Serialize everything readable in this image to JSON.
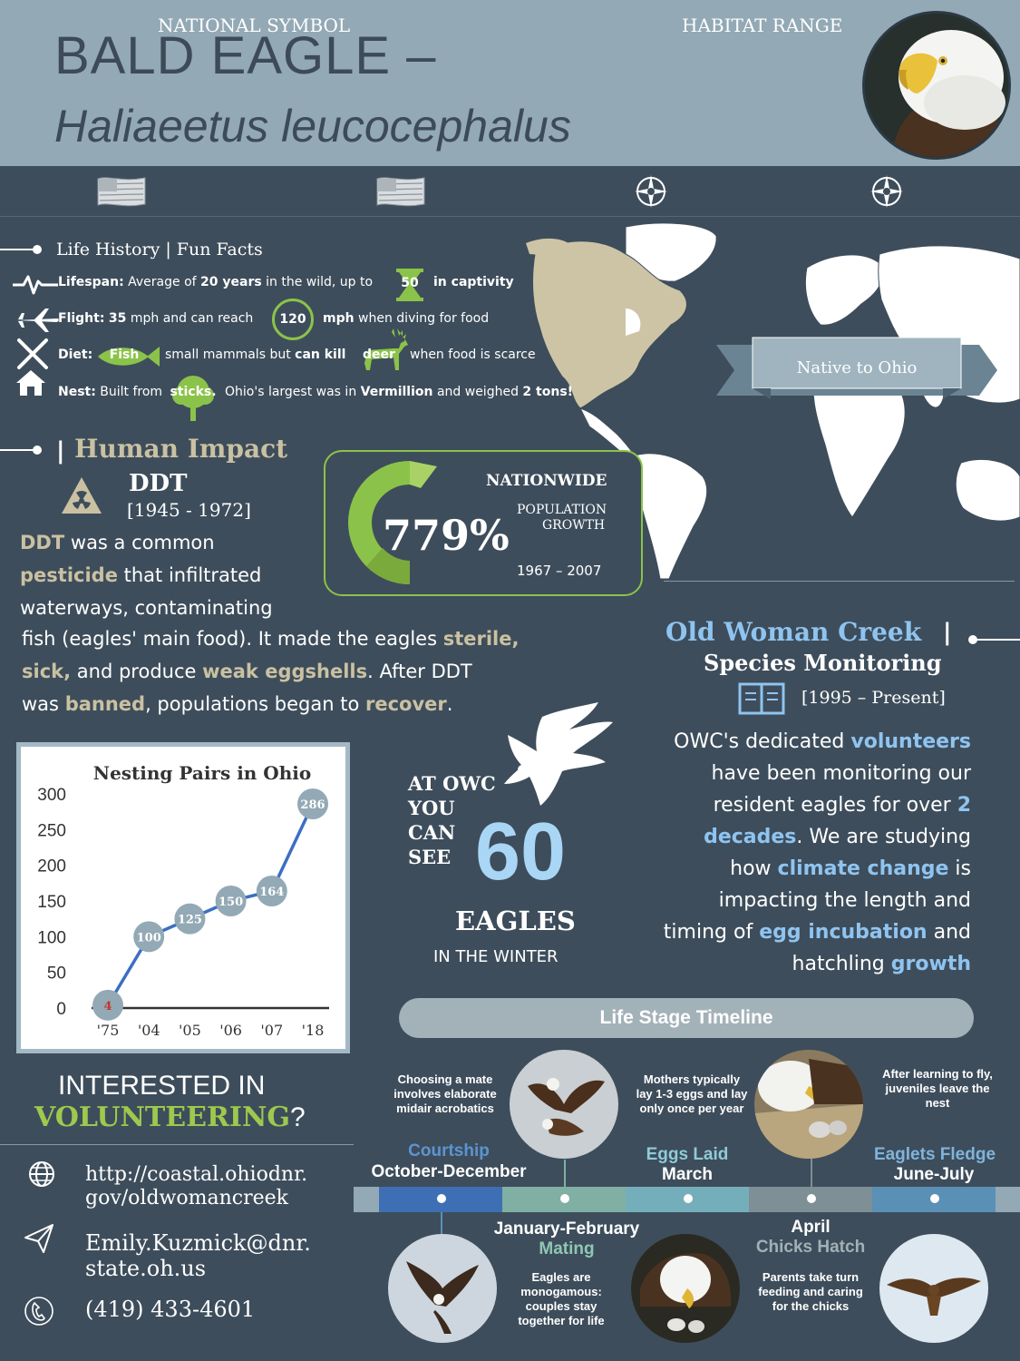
{
  "header": {
    "title_line1": "BALD EAGLE –",
    "title_line2": "Haliaeetus leucocephalus"
  },
  "banner": {
    "national_symbol": "NATIONAL SYMBOL",
    "habitat_range": "HABITAT RANGE"
  },
  "map": {
    "native_label": "Native to Ohio"
  },
  "life_history": {
    "title": "Life History | Fun Facts",
    "lifespan_label": "Lifespan:",
    "lifespan_text1": "Average of",
    "lifespan_bold": "20 years",
    "lifespan_text2": "in the wild, up to",
    "lifespan_badge": "50",
    "lifespan_text3": "in captivity",
    "flight_label": "Flight:",
    "flight_bold": "35",
    "flight_text1": "mph and can reach",
    "flight_ring": "120",
    "flight_text2": "mph",
    "flight_text3": "when diving for food",
    "diet_label": "Diet:",
    "diet_badge": "Fish",
    "diet_text1": "small mammals but",
    "diet_bold": "can kill",
    "diet_badge2": "deer",
    "diet_text2": "when food is scarce",
    "nest_label": "Nest:",
    "nest_text1": "Built from",
    "nest_badge": "sticks.",
    "nest_text2": "Ohio's largest was in",
    "nest_bold1": "Vermillion",
    "nest_text3": "and weighed",
    "nest_bold2": "2 tons!"
  },
  "human_impact": {
    "title": "Human Impact",
    "ddt": "DDT",
    "years": "[1945 - 1972]",
    "p1": "DDT",
    "p2": "was a common",
    "p3": "pesticide",
    "p4": "that infiltrated",
    "p5": "waterways, contaminating",
    "p6": "fish (eagles' main food). It made the eagles",
    "p7": "sterile,",
    "p8": "sick,",
    "p9": "and produce",
    "p10": "weak eggshells",
    "p11": ". After DDT",
    "p12": "was",
    "p13": "banned",
    "p14": ", populations began to",
    "p15": "recover",
    "p16": "."
  },
  "growth": {
    "percent": "779%",
    "percent_value": 779,
    "nationwide": "NATIONWIDE",
    "label1": "POPULATION",
    "label2": "GROWTH",
    "period": "1967 – 2007"
  },
  "chart_data": {
    "type": "line",
    "title": "Nesting Pairs in Ohio",
    "categories": [
      "'75",
      "'04",
      "'05",
      "'06",
      "'07",
      "'18"
    ],
    "values": [
      4,
      100,
      125,
      150,
      164,
      286
    ],
    "yticks": [
      0,
      50,
      100,
      150,
      200,
      250,
      300
    ],
    "ylim": [
      0,
      300
    ],
    "grid": false,
    "colors": {
      "line": "#3b6fc2",
      "marker": "#93a9b5",
      "first_label": "#c0392b"
    }
  },
  "owc_count": {
    "at": "AT",
    "owc": "OWC",
    "you": "YOU",
    "can": "CAN",
    "see": "SEE",
    "number": "60",
    "eagles": "EAGLES",
    "winter": "IN THE WINTER"
  },
  "owc": {
    "title": "Old Woman Creek",
    "pipe": "|",
    "subtitle": "Species Monitoring",
    "years": "[1995 – Present]",
    "b1": "OWC's dedicated",
    "b2": "volunteers",
    "b3": "have been monitoring our",
    "b4": "resident eagles for over",
    "b5": "2",
    "b6": "decades",
    "b7": ". We are studying",
    "b8": "how",
    "b9": "climate change",
    "b10": "is",
    "b11": "impacting the length and",
    "b12": "timing of",
    "b13": "egg incubation",
    "b14": "and",
    "b15": "hatchling",
    "b16": "growth"
  },
  "timeline": {
    "title": "Life Stage Timeline",
    "stages": [
      {
        "stage": "Courtship",
        "when": "October-December",
        "note": "Choosing a mate involves elaborate midair acrobatics"
      },
      {
        "stage": "Mating",
        "when": "January-February",
        "note": "Eagles are monogamous: couples stay together for life"
      },
      {
        "stage": "Eggs Laid",
        "when": "March",
        "note": "Mothers typically lay 1-3 eggs and lay only once per year"
      },
      {
        "stage": "Chicks Hatch",
        "when": "April",
        "note": "Parents take turn feeding and caring for the chicks"
      },
      {
        "stage": "Eaglets Fledge",
        "when": "June-July",
        "note": "After learning to fly, juveniles leave the nest"
      }
    ],
    "colors": [
      "#3e6fb4",
      "#7fb0a3",
      "#75aebb",
      "#7e8f95",
      "#5a90b6"
    ]
  },
  "volunteer": {
    "q1": "INTERESTED IN",
    "q2": "VOLUNTEERING",
    "q3": "?",
    "url1": "http://coastal.ohiodnr.",
    "url2": "gov/oldwomancreek",
    "email1": "Emily.Kuzmick@dnr.",
    "email2": "state.oh.us",
    "phone": "(419) 433-4601"
  }
}
